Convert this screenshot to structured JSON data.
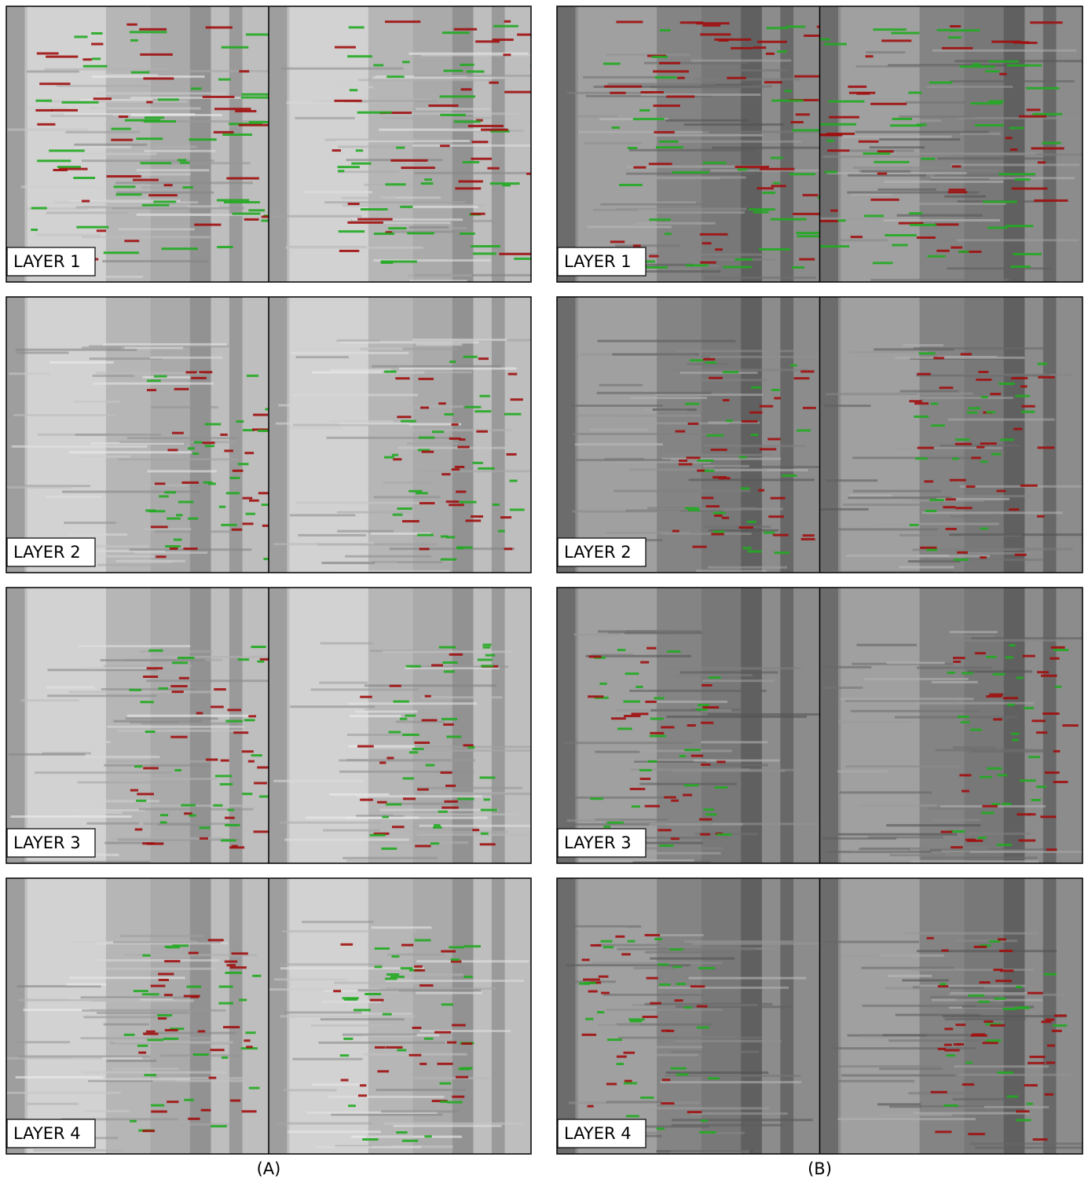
{
  "columns": [
    {
      "caption": "(A)",
      "panels": [
        {
          "label": "LAYER 1"
        },
        {
          "label": "LAYER 2"
        },
        {
          "label": "LAYER 3"
        },
        {
          "label": "LAYER 4"
        }
      ]
    },
    {
      "caption": "(B)",
      "panels": [
        {
          "label": "LAYER 1"
        },
        {
          "label": "LAYER 2"
        },
        {
          "label": "LAYER 3"
        },
        {
          "label": "LAYER 4"
        }
      ]
    }
  ]
}
